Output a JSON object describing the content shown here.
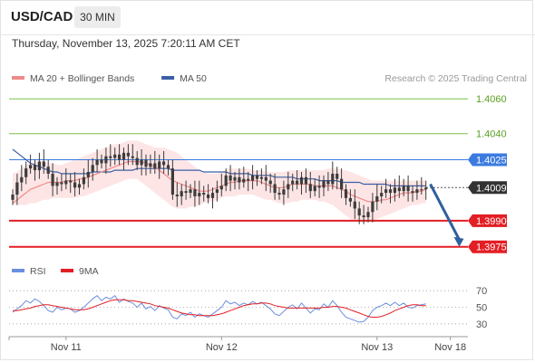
{
  "header": {
    "symbol": "USD/CAD",
    "timeframe": "30 MIN",
    "timestamp": "Thursday, November 13, 2025 7:20:11 AM CET"
  },
  "colors": {
    "ma20": "#f08a8a",
    "ma50": "#3b5ea6",
    "bollinger_fill": "#fde1e1",
    "green_level": "#7cc04a",
    "blue_level": "#3b7be0",
    "red_level": "#e31e24",
    "candle": "#3c3c3c",
    "arrow": "#2f5f9e",
    "rsi": "#6b8fe0",
    "rsi_ma": "#e31e24"
  },
  "chart_data": [
    {
      "type": "line",
      "title": "",
      "legend": [
        {
          "name": "MA 20 + Bollinger Bands",
          "color_key": "ma20",
          "swatch": "line"
        },
        {
          "name": "MA 50",
          "color_key": "ma50",
          "swatch": "line"
        }
      ],
      "credit": "Research © 2025 Trading Central",
      "ylim": [
        1.3966,
        1.407
      ],
      "x_ticks": [
        {
          "label": "Nov 11",
          "idx": 12
        },
        {
          "label": "Nov 12",
          "idx": 47
        },
        {
          "label": "Nov 13",
          "idx": 82
        },
        {
          "label": "Nov 18",
          "idx": 98.5
        }
      ],
      "levels": [
        {
          "value": 1.406,
          "label": "1.4060",
          "style": "green"
        },
        {
          "value": 1.404,
          "label": "1.4040",
          "style": "green"
        },
        {
          "value": 1.4025,
          "label": "1.4025",
          "style": "blue"
        },
        {
          "value": 1.4009,
          "label": "1.4009",
          "style": "current"
        },
        {
          "value": 1.399,
          "label": "1.3990",
          "style": "red"
        },
        {
          "value": 1.3975,
          "label": "1.3975",
          "style": "red"
        }
      ],
      "forecast_arrow": {
        "from_idx": 94,
        "from_value": 1.4011,
        "to_idx": 100.5,
        "to_value": 1.3976
      },
      "price_series": {
        "name": "USD/CAD",
        "close": [
          1.4005,
          1.4012,
          1.4015,
          1.402,
          1.4022,
          1.4019,
          1.4024,
          1.4021,
          1.4017,
          1.401,
          1.4012,
          1.4011,
          1.4013,
          1.4012,
          1.4009,
          1.4011,
          1.4015,
          1.4018,
          1.4022,
          1.4025,
          1.4023,
          1.4027,
          1.4026,
          1.4028,
          1.4025,
          1.4029,
          1.4027,
          1.4026,
          1.4022,
          1.4025,
          1.4021,
          1.4023,
          1.402,
          1.4024,
          1.4022,
          1.402,
          1.4005,
          1.4004,
          1.4007,
          1.4006,
          1.4008,
          1.4004,
          1.4006,
          1.4005,
          1.4003,
          1.4006,
          1.4008,
          1.401,
          1.4016,
          1.4013,
          1.4015,
          1.4012,
          1.4014,
          1.4013,
          1.4016,
          1.4014,
          1.4015,
          1.4013,
          1.4011,
          1.4006,
          1.4005,
          1.4008,
          1.4011,
          1.4013,
          1.4011,
          1.4015,
          1.4011,
          1.4007,
          1.401,
          1.4009,
          1.4013,
          1.4011,
          1.4017,
          1.4014,
          1.4008,
          1.4003,
          1.4001,
          1.3997,
          1.3993,
          1.3992,
          1.3995,
          1.4001,
          1.4004,
          1.4006,
          1.4008,
          1.4006,
          1.4009,
          1.4007,
          1.401,
          1.4007,
          1.4006,
          1.4008,
          1.4008,
          1.4009
        ],
        "ma20": [
          1.4,
          1.4002,
          1.4004,
          1.4006,
          1.4008,
          1.4009,
          1.401,
          1.4011,
          1.4012,
          1.4012,
          1.4012,
          1.4012,
          1.4013,
          1.4013,
          1.4013,
          1.4014,
          1.4014,
          1.4015,
          1.4016,
          1.4017,
          1.4018,
          1.4019,
          1.402,
          1.4021,
          1.4022,
          1.4023,
          1.4024,
          1.4024,
          1.4024,
          1.4024,
          1.4023,
          1.4022,
          1.4021,
          1.4019,
          1.4017,
          1.4015,
          1.4013,
          1.4012,
          1.4011,
          1.401,
          1.4009,
          1.4008,
          1.4007,
          1.4007,
          1.4007,
          1.4008,
          1.4009,
          1.401,
          1.4011,
          1.4012,
          1.4012,
          1.4013,
          1.4013,
          1.4013,
          1.4013,
          1.4013,
          1.4012,
          1.4011,
          1.401,
          1.4009,
          1.4009,
          1.4009,
          1.401,
          1.4011,
          1.4011,
          1.4011,
          1.4011,
          1.4011,
          1.401,
          1.401,
          1.401,
          1.401,
          1.401,
          1.4009,
          1.4008,
          1.4007,
          1.4005,
          1.4004,
          1.4003,
          1.4002,
          1.4001,
          1.4001,
          1.4001,
          1.4002,
          1.4002,
          1.4003,
          1.4004,
          1.4005,
          1.4006,
          1.4006,
          1.4006,
          1.4007,
          1.4007,
          1.4008
        ],
        "bb_upper": [
          1.4017,
          1.4018,
          1.402,
          1.4022,
          1.4023,
          1.4024,
          1.4024,
          1.4024,
          1.4023,
          1.4023,
          1.4022,
          1.4022,
          1.4023,
          1.4024,
          1.4025,
          1.4026,
          1.4027,
          1.4028,
          1.4029,
          1.403,
          1.4031,
          1.4032,
          1.4033,
          1.4034,
          1.4034,
          1.4035,
          1.4036,
          1.4036,
          1.4036,
          1.4035,
          1.4034,
          1.4033,
          1.4032,
          1.4032,
          1.4032,
          1.4031,
          1.403,
          1.4029,
          1.4027,
          1.4025,
          1.4023,
          1.4021,
          1.4019,
          1.4018,
          1.4017,
          1.4017,
          1.4017,
          1.4018,
          1.4019,
          1.402,
          1.402,
          1.402,
          1.402,
          1.402,
          1.4019,
          1.4019,
          1.4019,
          1.4018,
          1.4018,
          1.4018,
          1.4018,
          1.4018,
          1.4019,
          1.4019,
          1.4019,
          1.4019,
          1.4019,
          1.4019,
          1.4019,
          1.4019,
          1.4019,
          1.402,
          1.402,
          1.402,
          1.4019,
          1.4019,
          1.4018,
          1.4017,
          1.4016,
          1.4015,
          1.4014,
          1.4013,
          1.4013,
          1.4013,
          1.4013,
          1.4013,
          1.4013,
          1.4013,
          1.4013,
          1.4013,
          1.4013,
          1.4013,
          1.4013,
          1.4013
        ],
        "bb_lower": [
          1.4,
          1.3999,
          1.3999,
          1.3999,
          1.4,
          1.4,
          1.4001,
          1.4002,
          1.4002,
          1.4003,
          1.4003,
          1.4003,
          1.4003,
          1.4003,
          1.4003,
          1.4004,
          1.4004,
          1.4005,
          1.4006,
          1.4007,
          1.4008,
          1.4009,
          1.401,
          1.4011,
          1.4012,
          1.4013,
          1.4014,
          1.4014,
          1.4014,
          1.4012,
          1.401,
          1.4008,
          1.4006,
          1.4004,
          1.4002,
          1.4,
          1.3998,
          1.3997,
          1.3997,
          1.3997,
          1.3998,
          1.3998,
          1.3999,
          1.4,
          1.4001,
          1.4001,
          1.4002,
          1.4003,
          1.4004,
          1.4004,
          1.4004,
          1.4005,
          1.4005,
          1.4005,
          1.4005,
          1.4004,
          1.4003,
          1.4002,
          1.4002,
          1.4001,
          1.4,
          1.4,
          1.4,
          1.4001,
          1.4001,
          1.4002,
          1.4002,
          1.4002,
          1.4002,
          1.4001,
          1.4001,
          1.4,
          1.3999,
          1.3997,
          1.3995,
          1.3993,
          1.3991,
          1.399,
          1.3989,
          1.3989,
          1.3989,
          1.399,
          1.3991,
          1.3992,
          1.3993,
          1.3994,
          1.3995,
          1.3996,
          1.3997,
          1.3998,
          1.3999,
          1.3999,
          1.4,
          1.4
        ],
        "ma50": [
          1.4031,
          1.4029,
          1.4027,
          1.4025,
          1.4023,
          1.4022,
          1.4021,
          1.402,
          1.4019,
          1.4018,
          1.4018,
          1.4017,
          1.4017,
          1.4017,
          1.4017,
          1.4017,
          1.4017,
          1.4017,
          1.4018,
          1.4018,
          1.4018,
          1.4018,
          1.4018,
          1.4019,
          1.4019,
          1.4019,
          1.4019,
          1.4019,
          1.402,
          1.402,
          1.402,
          1.402,
          1.402,
          1.402,
          1.402,
          1.402,
          1.4019,
          1.4019,
          1.4019,
          1.4019,
          1.4019,
          1.4019,
          1.4019,
          1.4018,
          1.4018,
          1.4018,
          1.4018,
          1.4018,
          1.4018,
          1.4017,
          1.4017,
          1.4017,
          1.4017,
          1.4017,
          1.4016,
          1.4016,
          1.4016,
          1.4016,
          1.4016,
          1.4015,
          1.4015,
          1.4015,
          1.4015,
          1.4015,
          1.4014,
          1.4014,
          1.4014,
          1.4014,
          1.4014,
          1.4013,
          1.4013,
          1.4013,
          1.4013,
          1.4013,
          1.4012,
          1.4012,
          1.4012,
          1.4012,
          1.4012,
          1.4011,
          1.4011,
          1.4011,
          1.4011,
          1.4011,
          1.4011,
          1.401,
          1.401,
          1.401,
          1.401,
          1.401,
          1.401,
          1.401,
          1.401,
          1.401
        ]
      }
    },
    {
      "type": "line",
      "title": "",
      "legend": [
        {
          "name": "RSI",
          "color_key": "rsi",
          "swatch": "line"
        },
        {
          "name": "9MA",
          "color_key": "rsi_ma",
          "swatch": "line"
        }
      ],
      "ylim": [
        20,
        80
      ],
      "y_ticks": [
        70,
        50,
        30
      ],
      "series": [
        {
          "name": "RSI",
          "values": [
            44,
            48,
            52,
            58,
            55,
            60,
            57,
            52,
            46,
            44,
            50,
            47,
            49,
            48,
            44,
            46,
            50,
            55,
            60,
            64,
            58,
            62,
            60,
            64,
            56,
            60,
            57,
            55,
            50,
            55,
            48,
            51,
            46,
            52,
            49,
            47,
            38,
            36,
            42,
            40,
            44,
            38,
            42,
            40,
            38,
            42,
            46,
            50,
            58,
            54,
            56,
            52,
            55,
            53,
            57,
            54,
            56,
            52,
            48,
            42,
            40,
            45,
            50,
            53,
            48,
            55,
            49,
            43,
            48,
            47,
            54,
            50,
            58,
            52,
            44,
            38,
            36,
            34,
            32,
            33,
            38,
            46,
            50,
            52,
            55,
            52,
            56,
            52,
            55,
            50,
            49,
            52,
            53,
            54
          ]
        },
        {
          "name": "9MA",
          "values": [
            46,
            46,
            47,
            48,
            49,
            51,
            52,
            53,
            53,
            52,
            51,
            50,
            49,
            48,
            47,
            47,
            47,
            48,
            50,
            52,
            54,
            56,
            58,
            59,
            59,
            59,
            58,
            58,
            57,
            56,
            55,
            54,
            52,
            51,
            50,
            49,
            47,
            45,
            43,
            42,
            41,
            41,
            40,
            40,
            40,
            40,
            41,
            42,
            44,
            46,
            48,
            50,
            52,
            53,
            54,
            54,
            55,
            55,
            54,
            52,
            51,
            50,
            49,
            49,
            49,
            49,
            49,
            49,
            49,
            49,
            50,
            50,
            51,
            51,
            50,
            49,
            47,
            45,
            43,
            41,
            39,
            38,
            38,
            39,
            41,
            43,
            46,
            48,
            50,
            52,
            53,
            53,
            52,
            52
          ]
        }
      ]
    }
  ]
}
